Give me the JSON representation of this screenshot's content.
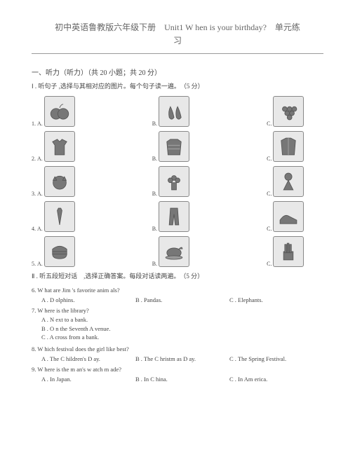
{
  "title_line1": "初中英语鲁教版六年级下册　Unit1 W hen is your birthday?　单元练",
  "title_line2": "习",
  "section1": "一、听力（听力）（共 20 小题；共 20 分）",
  "part1": "Ⅰ . 听句子 ,选择与其相对应的图片。每个句子读一遍。　（5 分）",
  "rows": [
    {
      "n": "1.",
      "a": "A.",
      "b": "B.",
      "c": "C.",
      "icons": [
        "apples",
        "pears",
        "grapes"
      ]
    },
    {
      "n": "2.",
      "a": "A.",
      "b": "B.",
      "c": "C.",
      "icons": [
        "tshirt",
        "sweater",
        "jacket"
      ]
    },
    {
      "n": "3.",
      "a": "A.",
      "b": "B.",
      "c": "C.",
      "icons": [
        "cat",
        "flowers",
        "doll"
      ]
    },
    {
      "n": "4.",
      "a": "A.",
      "b": "B.",
      "c": "C.",
      "icons": [
        "tie",
        "pants",
        "shoe"
      ]
    },
    {
      "n": "5.",
      "a": "A.",
      "b": "B.",
      "c": "C.",
      "icons": [
        "burger",
        "chicken",
        "fries"
      ]
    }
  ],
  "part2": "Ⅱ . 听五段短对话　,选择正确答案。每段对话读两遍。　（5 分）",
  "q6": {
    "q": "6. W hat are Jim 's favorite anim als?",
    "a": "A . D olphins.",
    "b": "B . Pandas.",
    "c": "C . Elephants."
  },
  "q7": {
    "q": "7. W here is the library?",
    "a": "A . N ext to a bank.",
    "b": "B . O n the Seventh A venue.",
    "c": "C . A cross from a bank."
  },
  "q8": {
    "q": "8. W hich festival does the girl like best?",
    "a": "A . The C hildren's D ay.",
    "b": "B . The C hristm as D ay.",
    "c": "C . The Spring Festival."
  },
  "q9": {
    "q": "9. W here is the m an's w atch m ade?",
    "a": "A . In Japan.",
    "b": "B . In C hina.",
    "c": "C . In Am erica."
  }
}
